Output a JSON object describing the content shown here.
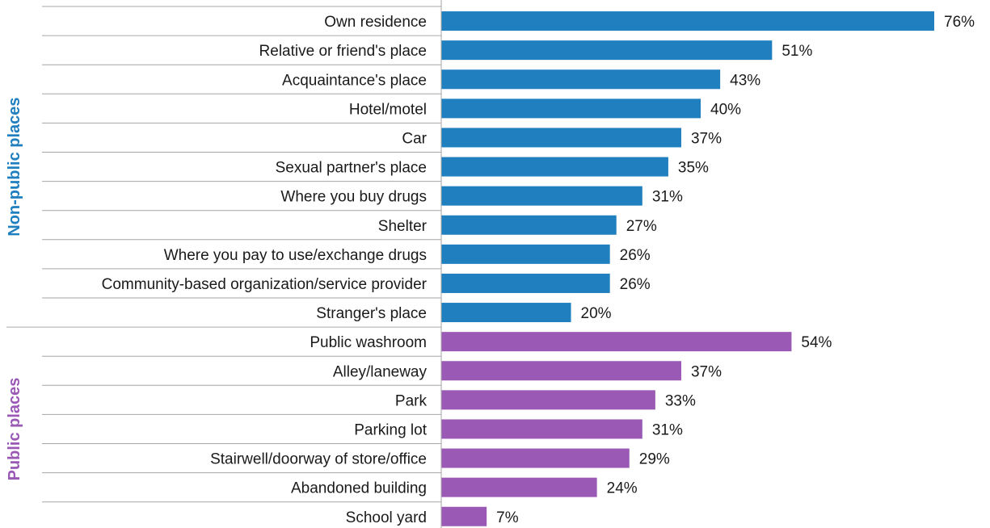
{
  "chart_data": {
    "type": "bar",
    "orientation": "horizontal",
    "value_suffix": "%",
    "xlim": [
      0,
      76
    ],
    "grid": false,
    "legend": "none",
    "groups": [
      {
        "name": "Non-public places",
        "color": "#1f7fbf",
        "items": [
          {
            "label": "Own residence",
            "value": 76
          },
          {
            "label": "Relative or friend's place",
            "value": 51
          },
          {
            "label": "Acquaintance's place",
            "value": 43
          },
          {
            "label": "Hotel/motel",
            "value": 40
          },
          {
            "label": "Car",
            "value": 37
          },
          {
            "label": "Sexual partner's place",
            "value": 35
          },
          {
            "label": "Where you buy drugs",
            "value": 31
          },
          {
            "label": "Shelter",
            "value": 27
          },
          {
            "label": "Where you pay to use/exchange drugs",
            "value": 26
          },
          {
            "label": "Community-based organization/service provider",
            "value": 26
          },
          {
            "label": "Stranger's place",
            "value": 20
          }
        ]
      },
      {
        "name": "Public places",
        "color": "#9b59b6",
        "items": [
          {
            "label": "Public washroom",
            "value": 54
          },
          {
            "label": "Alley/laneway",
            "value": 37
          },
          {
            "label": "Park",
            "value": 33
          },
          {
            "label": "Parking lot",
            "value": 31
          },
          {
            "label": "Stairwell/doorway of store/office",
            "value": 29
          },
          {
            "label": "Abandoned building",
            "value": 24
          },
          {
            "label": "School yard",
            "value": 7
          }
        ]
      }
    ]
  }
}
